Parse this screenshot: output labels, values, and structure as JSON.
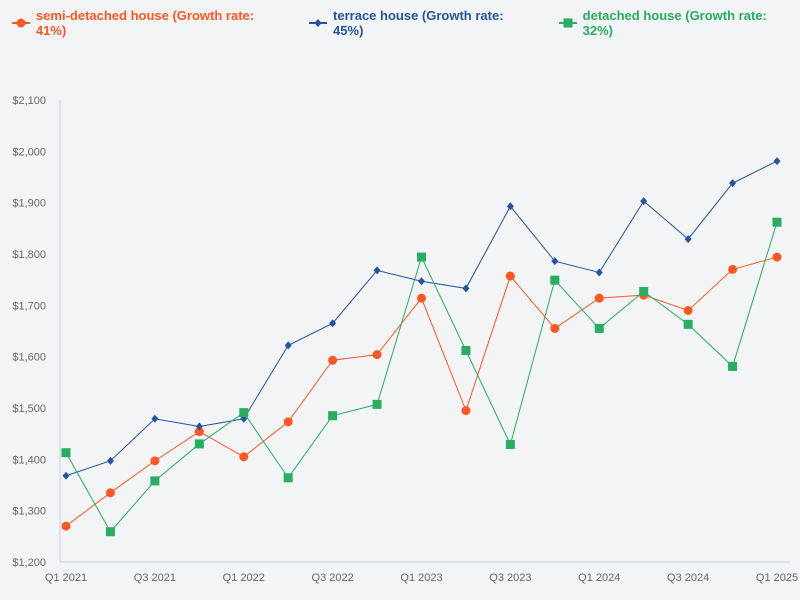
{
  "chart_data": {
    "type": "line",
    "categories": [
      "Q1 2021",
      "Q2 2021",
      "Q3 2021",
      "Q4 2021",
      "Q1 2022",
      "Q2 2022",
      "Q3 2022",
      "Q4 2022",
      "Q1 2023",
      "Q2 2023",
      "Q3 2023",
      "Q4 2023",
      "Q1 2024",
      "Q2 2024",
      "Q3 2024",
      "Q4 2024",
      "Q1 2025"
    ],
    "x_tick_labels": [
      "Q1 2021",
      "Q3 2021",
      "Q1 2022",
      "Q3 2022",
      "Q1 2023",
      "Q3 2023",
      "Q1 2024",
      "Q3 2024",
      "Q1 2025"
    ],
    "y_tick_labels": [
      "$1,200",
      "$1,300",
      "$1,400",
      "$1,500",
      "$1,600",
      "$1,700",
      "$1,800",
      "$1,900",
      "$2,000",
      "$2,100"
    ],
    "ylim": [
      1200,
      2100
    ],
    "grid": false,
    "legend_position": "top-left",
    "series": [
      {
        "name": "semi-detached house (Growth rate: 41%)",
        "color": "#ff5722",
        "marker": "circle",
        "values": [
          1270,
          1335,
          1397,
          1454,
          1405,
          1473,
          1593,
          1604,
          1714,
          1495,
          1757,
          1655,
          1714,
          1720,
          1690,
          1770,
          1794
        ]
      },
      {
        "name": "terrace house (Growth rate: 45%)",
        "color": "#2453a3",
        "marker": "diamond",
        "values": [
          1368,
          1397,
          1479,
          1464,
          1479,
          1622,
          1665,
          1768,
          1747,
          1733,
          1893,
          1786,
          1764,
          1903,
          1829,
          1938,
          1981
        ]
      },
      {
        "name": "detached house (Growth rate: 32%)",
        "color": "#27ae60",
        "marker": "square",
        "values": [
          1413,
          1259,
          1358,
          1430,
          1491,
          1364,
          1485,
          1507,
          1794,
          1612,
          1429,
          1749,
          1655,
          1727,
          1663,
          1581,
          1862
        ]
      }
    ]
  }
}
